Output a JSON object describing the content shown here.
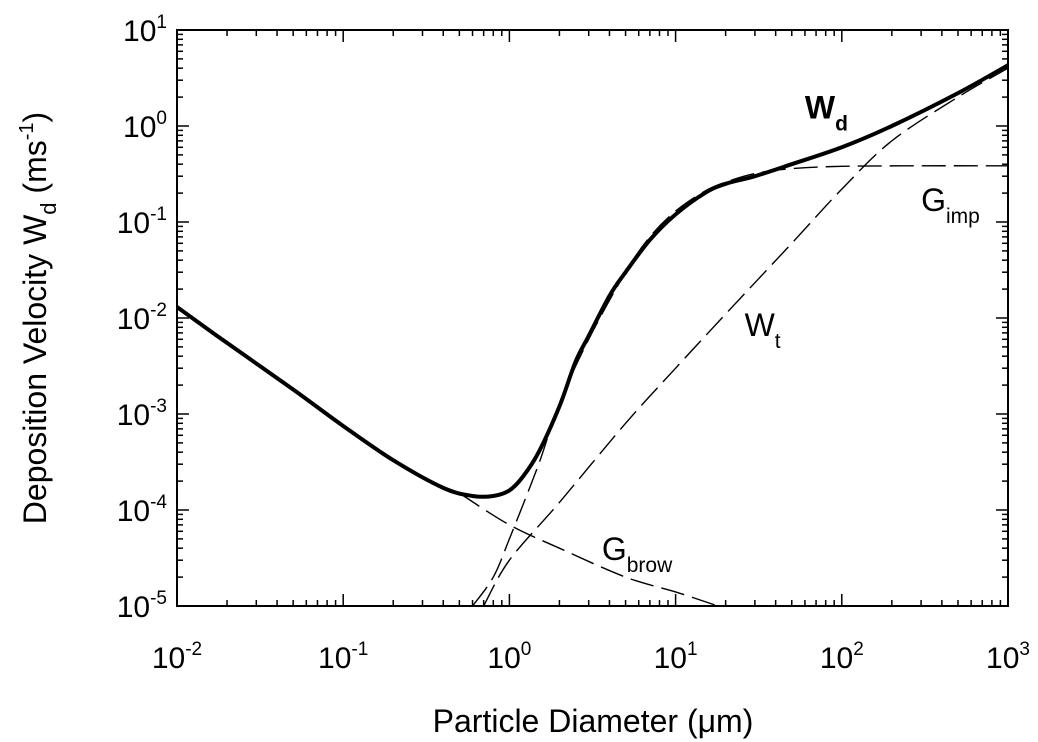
{
  "chart_data": {
    "type": "line",
    "xlabel": "Particle Diameter (μm)",
    "ylabel": {
      "base": "Deposition Velocity W",
      "sub": "d",
      "unit_open": " (ms",
      "unit_sup": "-1",
      "unit_close": ")"
    },
    "x_scale": "log",
    "y_scale": "log",
    "xlim": [
      0.01,
      1000
    ],
    "ylim": [
      1e-05,
      10
    ],
    "grid": false,
    "x_ticks": [
      {
        "value": 0.01,
        "base": "10",
        "exp": "-2"
      },
      {
        "value": 0.1,
        "base": "10",
        "exp": "-1"
      },
      {
        "value": 1,
        "base": "10",
        "exp": "0"
      },
      {
        "value": 10,
        "base": "10",
        "exp": "1"
      },
      {
        "value": 100,
        "base": "10",
        "exp": "2"
      },
      {
        "value": 1000,
        "base": "10",
        "exp": "3"
      }
    ],
    "y_ticks": [
      {
        "value": 1e-05,
        "base": "10",
        "exp": "-5"
      },
      {
        "value": 0.0001,
        "base": "10",
        "exp": "-4"
      },
      {
        "value": 0.001,
        "base": "10",
        "exp": "-3"
      },
      {
        "value": 0.01,
        "base": "10",
        "exp": "-2"
      },
      {
        "value": 0.1,
        "base": "10",
        "exp": "-1"
      },
      {
        "value": 1,
        "base": "10",
        "exp": "0"
      },
      {
        "value": 10,
        "base": "10",
        "exp": "1"
      }
    ],
    "series": [
      {
        "key": "wd",
        "label_base": "W",
        "label_sub": "d",
        "style": "solid-bold",
        "label_at": {
          "x": 60,
          "y": 1.2
        },
        "x": [
          0.01,
          0.02,
          0.05,
          0.1,
          0.2,
          0.4,
          0.6,
          0.8,
          1.0,
          1.2,
          1.5,
          2,
          2.5,
          3,
          4,
          5,
          7,
          10,
          15,
          20,
          30,
          50,
          100,
          200,
          500,
          1000
        ],
        "y": [
          0.013,
          0.0055,
          0.0018,
          0.00075,
          0.00033,
          0.00017,
          0.00014,
          0.00014,
          0.00016,
          0.00022,
          0.0004,
          0.0012,
          0.0035,
          0.0065,
          0.017,
          0.03,
          0.065,
          0.12,
          0.2,
          0.25,
          0.3,
          0.4,
          0.6,
          1.0,
          2.2,
          4.3
        ]
      },
      {
        "key": "gbrow",
        "label_base": "G",
        "label_sub": "brow",
        "style": "dashed",
        "label_at": {
          "x": 3.6,
          "y": 3e-05
        },
        "x": [
          0.5,
          1,
          2,
          5,
          10,
          18
        ],
        "y": [
          0.00015,
          7e-05,
          4e-05,
          2e-05,
          1.4e-05,
          1e-05
        ]
      },
      {
        "key": "gimp",
        "label_base": "G",
        "label_sub": "imp",
        "style": "dashed",
        "label_at": {
          "x": 300,
          "y": 0.13
        },
        "x": [
          0.6,
          0.8,
          1,
          1.5,
          2,
          3,
          5,
          7,
          10,
          15,
          20,
          30,
          50,
          100,
          300,
          1000
        ],
        "y": [
          1e-05,
          2e-05,
          5e-05,
          0.0003,
          0.0013,
          0.006,
          0.03,
          0.07,
          0.13,
          0.21,
          0.26,
          0.32,
          0.36,
          0.38,
          0.385,
          0.385
        ]
      },
      {
        "key": "wt",
        "label_base": "W",
        "label_sub": "t",
        "style": "dashed",
        "label_at": {
          "x": 26,
          "y": 0.0065
        },
        "x": [
          0.7,
          1,
          2,
          5,
          10,
          20,
          50,
          100,
          200,
          500,
          1000
        ],
        "y": [
          1e-05,
          3e-05,
          0.00012,
          0.0008,
          0.003,
          0.011,
          0.06,
          0.22,
          0.7,
          2.0,
          4.0
        ]
      }
    ]
  }
}
